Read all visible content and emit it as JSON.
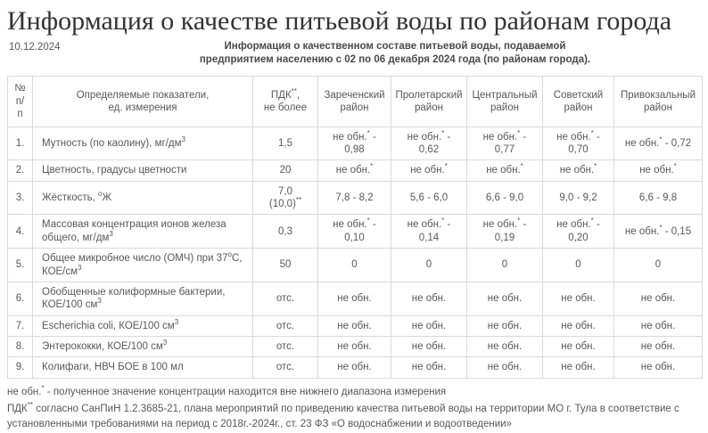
{
  "page": {
    "title": "Информация о качестве питьевой воды по районам города",
    "date": "10.12.2024",
    "subtitle": "Информация о качественном составе питьевой воды, подаваемой\nпредприятием населению с 02 по 06 декабря 2024 года (по районам города)."
  },
  "colors": {
    "border": "#d9d9d9",
    "body_text": "#58585a",
    "title_text": "#333333"
  },
  "table": {
    "headers": [
      "№\nп/\nп",
      "Определяемые показатели,\nед. измерения",
      "ПДК{**},\nне более",
      "Зареченский район",
      "Пролетарский район",
      "Центральный район",
      "Советский район",
      "Привокзальный район"
    ],
    "rows": [
      {
        "num": "1.",
        "name": "Мутность (по каолину), мг/дм{3}",
        "pdk": "1,5",
        "values": [
          "не обн.{*} - 0,98",
          "не обн.{*} - 0,62",
          "не обн.{*} - 0,77",
          "не обн.{*} - 0,70",
          "не обн.{*} - 0,72"
        ]
      },
      {
        "num": "2.",
        "name": "Цветность, градусы цветности",
        "pdk": "20",
        "values": [
          "не обн.{*}",
          "не обн.{*}",
          "не обн.{*}",
          "не обн.{*}",
          "не обн.{*}"
        ]
      },
      {
        "num": "3.",
        "name": "Жёсткость, {о}Ж",
        "pdk": "7,0\n(10,0){**}",
        "values": [
          "7,8 - 8,2",
          "5,6 - 6,0",
          "6,6 - 9,0",
          "9,0 - 9,2",
          "6,6 - 9,8"
        ]
      },
      {
        "num": "4.",
        "name": "Массовая концентрация ионов железа общего, мг/дм{3}",
        "pdk": "0,3",
        "values": [
          "не обн.{*} - 0,10",
          "не обн.{*} - 0,14",
          "не обн.{*} - 0,19",
          "не обн.{*} - 0,20",
          "не обн.{*} - 0,15"
        ]
      },
      {
        "num": "5.",
        "name": "Общее микробное число (ОМЧ) при 37{о}С, КОЕ/см{3}",
        "pdk": "50",
        "values": [
          "0",
          "0",
          "0",
          "0",
          "0"
        ]
      },
      {
        "num": "6.",
        "name": "Обобщенные колиформные бактерии, КОЕ/100 см{3}",
        "pdk": "отс.",
        "values": [
          "не обн.",
          "не обн.",
          "не обн.",
          "не обн.",
          "не обн."
        ]
      },
      {
        "num": "7.",
        "name": "Escherichia coli, КОЕ/100 см{3}",
        "pdk": "отс.",
        "values": [
          "не обн.",
          "не обн.",
          "не обн.",
          "не обн.",
          "не обн."
        ]
      },
      {
        "num": "8.",
        "name": "Энтерококки, КОЕ/100 см{3}",
        "pdk": "отс.",
        "values": [
          "не обн.",
          "не обн.",
          "не обн.",
          "не обн.",
          "не обн."
        ]
      },
      {
        "num": "9.",
        "name": "Колифаги, НВЧ БОЕ в 100 мл",
        "pdk": "отс.",
        "values": [
          "не обн.",
          "не обн.",
          "не обн.",
          "не обн.",
          "не обн."
        ]
      }
    ]
  },
  "footnotes": [
    "не обн.{*} - полученное значение концентрации находится вне нижнего диапазона измерения",
    "ПДК{**} согласно СанПиН 1.2.3685-21, плана мероприятий по приведению качества питьевой воды на территории МО г. Тула в соответствие с установленными требованиями на период с 2018г.-2024г., ст. 23 ФЗ «О водоснабжении и водоотведении»"
  ]
}
